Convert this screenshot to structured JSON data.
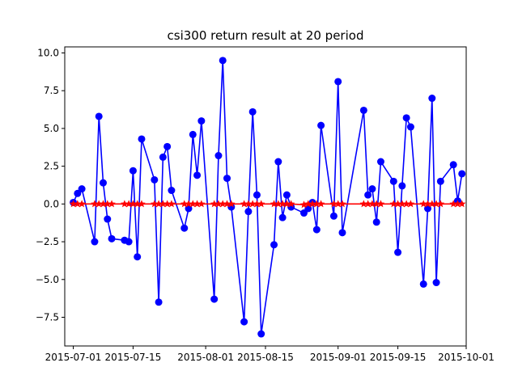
{
  "chart_data": {
    "type": "line",
    "title": "csi300 return result at 20 period",
    "xlabel": "",
    "ylabel": "",
    "xlim": [
      "2015-06-29",
      "2015-10-01"
    ],
    "ylim": [
      -9.4,
      10.4
    ],
    "grid": false,
    "x_ticks": [
      {
        "date": "2015-07-01",
        "label": "2015-07-01"
      },
      {
        "date": "2015-07-15",
        "label": "2015-07-15"
      },
      {
        "date": "2015-08-01",
        "label": "2015-08-01"
      },
      {
        "date": "2015-08-15",
        "label": "2015-08-15"
      },
      {
        "date": "2015-09-01",
        "label": "2015-09-01"
      },
      {
        "date": "2015-09-15",
        "label": "2015-09-15"
      },
      {
        "date": "2015-10-01",
        "label": "2015-10-01"
      }
    ],
    "y_ticks": [
      {
        "value": 10.0,
        "label": "10.0"
      },
      {
        "value": 7.5,
        "label": "7.5"
      },
      {
        "value": 5.0,
        "label": "5.0"
      },
      {
        "value": 2.5,
        "label": "2.5"
      },
      {
        "value": 0.0,
        "label": "0.0"
      },
      {
        "value": -2.5,
        "label": "−2.5"
      },
      {
        "value": -5.0,
        "label": "−5.0"
      },
      {
        "value": -7.5,
        "label": "−7.5"
      }
    ],
    "series": [
      {
        "color": "#0000ff",
        "marker": "circle",
        "points": [
          {
            "x": "2015-07-01",
            "y": 0.1
          },
          {
            "x": "2015-07-02",
            "y": 0.7
          },
          {
            "x": "2015-07-03",
            "y": 1.0
          },
          {
            "x": "2015-07-06",
            "y": -2.5
          },
          {
            "x": "2015-07-07",
            "y": 5.8
          },
          {
            "x": "2015-07-08",
            "y": 1.4
          },
          {
            "x": "2015-07-09",
            "y": -1.0
          },
          {
            "x": "2015-07-10",
            "y": -2.3
          },
          {
            "x": "2015-07-13",
            "y": -2.4
          },
          {
            "x": "2015-07-14",
            "y": -2.5
          },
          {
            "x": "2015-07-15",
            "y": 2.2
          },
          {
            "x": "2015-07-16",
            "y": -3.5
          },
          {
            "x": "2015-07-17",
            "y": 4.3
          },
          {
            "x": "2015-07-20",
            "y": 1.6
          },
          {
            "x": "2015-07-21",
            "y": -6.5
          },
          {
            "x": "2015-07-22",
            "y": 3.1
          },
          {
            "x": "2015-07-23",
            "y": 3.8
          },
          {
            "x": "2015-07-24",
            "y": 0.9
          },
          {
            "x": "2015-07-27",
            "y": -1.6
          },
          {
            "x": "2015-07-28",
            "y": -0.3
          },
          {
            "x": "2015-07-29",
            "y": 4.6
          },
          {
            "x": "2015-07-30",
            "y": 1.9
          },
          {
            "x": "2015-07-31",
            "y": 5.5
          },
          {
            "x": "2015-08-03",
            "y": -6.3
          },
          {
            "x": "2015-08-04",
            "y": 3.2
          },
          {
            "x": "2015-08-05",
            "y": 9.5
          },
          {
            "x": "2015-08-06",
            "y": 1.7
          },
          {
            "x": "2015-08-07",
            "y": -0.2
          },
          {
            "x": "2015-08-10",
            "y": -7.8
          },
          {
            "x": "2015-08-11",
            "y": -0.5
          },
          {
            "x": "2015-08-12",
            "y": 6.1
          },
          {
            "x": "2015-08-13",
            "y": 0.6
          },
          {
            "x": "2015-08-14",
            "y": -8.6
          },
          {
            "x": "2015-08-17",
            "y": -2.7
          },
          {
            "x": "2015-08-18",
            "y": 2.8
          },
          {
            "x": "2015-08-19",
            "y": -0.9
          },
          {
            "x": "2015-08-20",
            "y": 0.6
          },
          {
            "x": "2015-08-21",
            "y": -0.2
          },
          {
            "x": "2015-08-24",
            "y": -0.6
          },
          {
            "x": "2015-08-25",
            "y": -0.3
          },
          {
            "x": "2015-08-26",
            "y": 0.1
          },
          {
            "x": "2015-08-27",
            "y": -1.7
          },
          {
            "x": "2015-08-28",
            "y": 5.2
          },
          {
            "x": "2015-08-31",
            "y": -0.8
          },
          {
            "x": "2015-09-01",
            "y": 8.1
          },
          {
            "x": "2015-09-02",
            "y": -1.9
          },
          {
            "x": "2015-09-07",
            "y": 6.2
          },
          {
            "x": "2015-09-08",
            "y": 0.6
          },
          {
            "x": "2015-09-09",
            "y": 1.0
          },
          {
            "x": "2015-09-10",
            "y": -1.2
          },
          {
            "x": "2015-09-11",
            "y": 2.8
          },
          {
            "x": "2015-09-14",
            "y": 1.5
          },
          {
            "x": "2015-09-15",
            "y": -3.2
          },
          {
            "x": "2015-09-16",
            "y": 1.2
          },
          {
            "x": "2015-09-17",
            "y": 5.7
          },
          {
            "x": "2015-09-18",
            "y": 5.1
          },
          {
            "x": "2015-09-21",
            "y": -5.3
          },
          {
            "x": "2015-09-22",
            "y": -0.3
          },
          {
            "x": "2015-09-23",
            "y": 7.0
          },
          {
            "x": "2015-09-24",
            "y": -5.2
          },
          {
            "x": "2015-09-25",
            "y": 1.5
          },
          {
            "x": "2015-09-28",
            "y": 2.6
          },
          {
            "x": "2015-09-29",
            "y": 0.2
          },
          {
            "x": "2015-09-30",
            "y": 2.0
          }
        ]
      },
      {
        "color": "#ff0000",
        "marker": "star",
        "points": [
          {
            "x": "2015-07-01",
            "y": 0.0
          },
          {
            "x": "2015-07-02",
            "y": 0.0
          },
          {
            "x": "2015-07-03",
            "y": 0.0
          },
          {
            "x": "2015-07-06",
            "y": 0.0
          },
          {
            "x": "2015-07-07",
            "y": 0.0
          },
          {
            "x": "2015-07-08",
            "y": 0.0
          },
          {
            "x": "2015-07-09",
            "y": 0.0
          },
          {
            "x": "2015-07-10",
            "y": 0.0
          },
          {
            "x": "2015-07-13",
            "y": 0.0
          },
          {
            "x": "2015-07-14",
            "y": 0.0
          },
          {
            "x": "2015-07-15",
            "y": 0.0
          },
          {
            "x": "2015-07-16",
            "y": 0.0
          },
          {
            "x": "2015-07-17",
            "y": 0.0
          },
          {
            "x": "2015-07-20",
            "y": 0.0
          },
          {
            "x": "2015-07-21",
            "y": 0.0
          },
          {
            "x": "2015-07-22",
            "y": 0.0
          },
          {
            "x": "2015-07-23",
            "y": 0.0
          },
          {
            "x": "2015-07-24",
            "y": 0.0
          },
          {
            "x": "2015-07-27",
            "y": 0.0
          },
          {
            "x": "2015-07-28",
            "y": 0.0
          },
          {
            "x": "2015-07-29",
            "y": 0.0
          },
          {
            "x": "2015-07-30",
            "y": 0.0
          },
          {
            "x": "2015-07-31",
            "y": 0.0
          },
          {
            "x": "2015-08-03",
            "y": 0.0
          },
          {
            "x": "2015-08-04",
            "y": 0.0
          },
          {
            "x": "2015-08-05",
            "y": 0.0
          },
          {
            "x": "2015-08-06",
            "y": 0.0
          },
          {
            "x": "2015-08-07",
            "y": 0.0
          },
          {
            "x": "2015-08-10",
            "y": 0.0
          },
          {
            "x": "2015-08-11",
            "y": 0.0
          },
          {
            "x": "2015-08-12",
            "y": 0.0
          },
          {
            "x": "2015-08-13",
            "y": 0.0
          },
          {
            "x": "2015-08-14",
            "y": 0.0
          },
          {
            "x": "2015-08-17",
            "y": 0.0
          },
          {
            "x": "2015-08-18",
            "y": 0.0
          },
          {
            "x": "2015-08-19",
            "y": 0.0
          },
          {
            "x": "2015-08-20",
            "y": 0.0
          },
          {
            "x": "2015-08-21",
            "y": 0.0
          },
          {
            "x": "2015-08-24",
            "y": -0.05
          },
          {
            "x": "2015-08-25",
            "y": 0.0
          },
          {
            "x": "2015-08-26",
            "y": 0.0
          },
          {
            "x": "2015-08-27",
            "y": 0.0
          },
          {
            "x": "2015-08-28",
            "y": 0.0
          },
          {
            "x": "2015-08-31",
            "y": 0.0
          },
          {
            "x": "2015-09-01",
            "y": 0.0
          },
          {
            "x": "2015-09-02",
            "y": 0.0
          },
          {
            "x": "2015-09-07",
            "y": 0.0
          },
          {
            "x": "2015-09-08",
            "y": 0.0
          },
          {
            "x": "2015-09-09",
            "y": 0.0
          },
          {
            "x": "2015-09-10",
            "y": 0.0
          },
          {
            "x": "2015-09-11",
            "y": 0.0
          },
          {
            "x": "2015-09-14",
            "y": 0.0
          },
          {
            "x": "2015-09-15",
            "y": 0.0
          },
          {
            "x": "2015-09-16",
            "y": 0.0
          },
          {
            "x": "2015-09-17",
            "y": 0.0
          },
          {
            "x": "2015-09-18",
            "y": 0.0
          },
          {
            "x": "2015-09-21",
            "y": 0.0
          },
          {
            "x": "2015-09-22",
            "y": 0.0
          },
          {
            "x": "2015-09-23",
            "y": 0.0
          },
          {
            "x": "2015-09-24",
            "y": 0.0
          },
          {
            "x": "2015-09-25",
            "y": 0.0
          },
          {
            "x": "2015-09-28",
            "y": 0.0
          },
          {
            "x": "2015-09-29",
            "y": 0.0
          },
          {
            "x": "2015-09-30",
            "y": 0.0
          }
        ]
      }
    ]
  }
}
